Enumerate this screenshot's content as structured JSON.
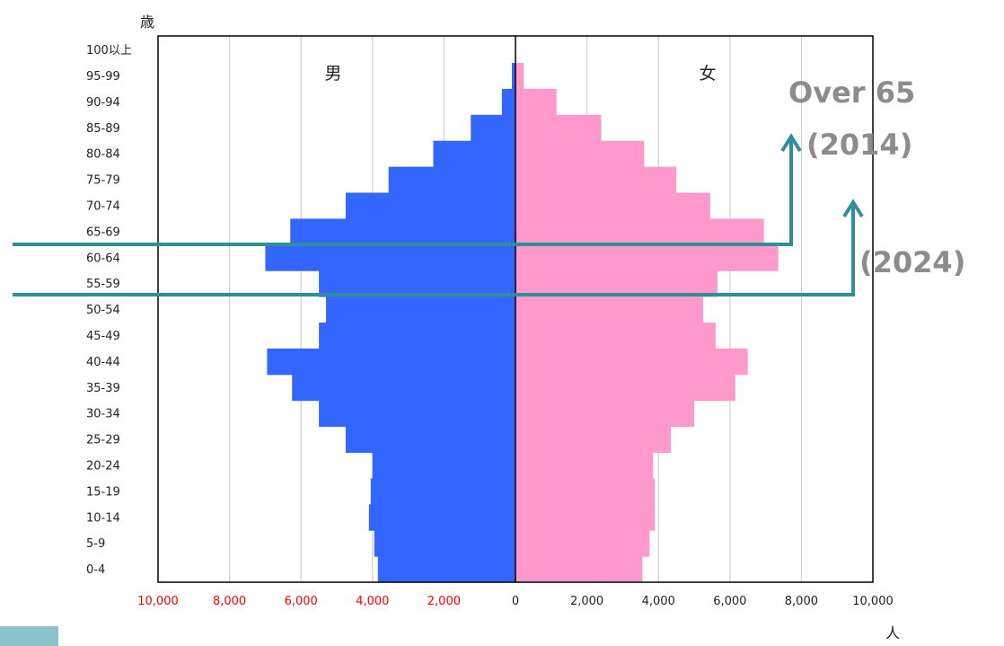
{
  "chart_data": {
    "type": "bar",
    "subtype": "population-pyramid",
    "ylabel": "歳",
    "xlabel": "人",
    "categories": [
      "0-4",
      "5-9",
      "10-14",
      "15-19",
      "20-24",
      "25-29",
      "30-34",
      "35-39",
      "40-44",
      "45-49",
      "50-54",
      "55-59",
      "60-64",
      "65-69",
      "70-74",
      "75-79",
      "80-84",
      "85-89",
      "90-94",
      "95-99",
      "100以上"
    ],
    "series": [
      {
        "name": "男",
        "color": "#3366ff",
        "values": [
          3850,
          3950,
          4100,
          4050,
          4000,
          4750,
          5500,
          6250,
          6950,
          5500,
          5300,
          5500,
          7000,
          6300,
          4750,
          3550,
          2300,
          1250,
          380,
          100,
          0
        ]
      },
      {
        "name": "女",
        "color": "#ff99cc",
        "values": [
          3550,
          3750,
          3900,
          3900,
          3850,
          4350,
          5000,
          6150,
          6500,
          5600,
          5250,
          5650,
          7350,
          6950,
          5450,
          4500,
          3600,
          2400,
          1150,
          230,
          0
        ]
      }
    ],
    "xlim": [
      -10000,
      10000
    ],
    "xticks": [
      -10000,
      -8000,
      -6000,
      -4000,
      -2000,
      0,
      2000,
      4000,
      6000,
      8000,
      10000
    ],
    "xtick_labels": [
      "10,000",
      "8,000",
      "6,000",
      "4,000",
      "2,000",
      "0",
      "2,000",
      "4,000",
      "6,000",
      "8,000",
      "10,000"
    ],
    "xtick_colors": {
      "left": "#ff0000",
      "right": "#222222"
    },
    "grid": "vertical",
    "annotations": {
      "over65_title": "Over 65",
      "over65_year": "(2014)",
      "future_year": "(2024)",
      "line_color": "#2e8f99"
    }
  }
}
